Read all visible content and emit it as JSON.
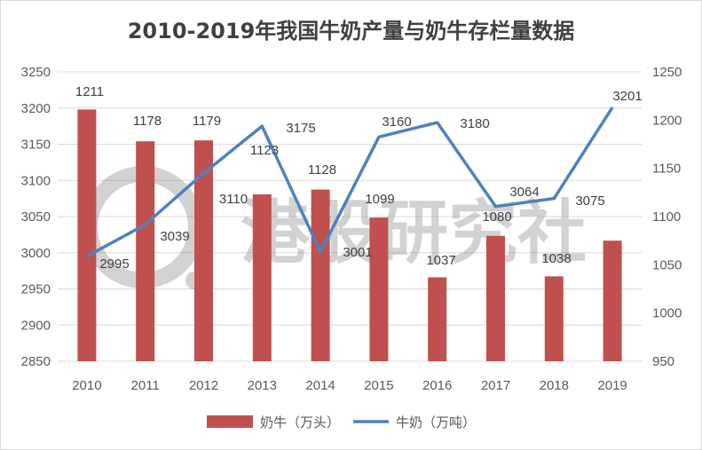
{
  "chart_data": {
    "type": "bar",
    "title": "2010-2019年我国牛奶产量与奶牛存栏量数据",
    "categories": [
      "2010",
      "2011",
      "2012",
      "2013",
      "2014",
      "2015",
      "2016",
      "2017",
      "2018",
      "2019"
    ],
    "series": [
      {
        "name": "奶牛（万头）",
        "type": "bar",
        "axis": "left",
        "values": [
          1211,
          1178,
          1179,
          1123,
          1128,
          1099,
          1037,
          1080,
          1038,
          1075
        ]
      },
      {
        "name": "牛奶（万吨）",
        "type": "line",
        "axis": "right",
        "values": [
          2995,
          3039,
          3110,
          3175,
          3001,
          3160,
          3180,
          3064,
          3075,
          3201
        ]
      }
    ],
    "data_labels": [
      "1211",
      "1178",
      "1179",
      "1123",
      "1128",
      "1099",
      "1037",
      "1080",
      "1038",
      "3201",
      "2995",
      "3039",
      "3110",
      "3175",
      "3001",
      "3160",
      "3180",
      "3064",
      "3075"
    ],
    "y_left": {
      "min": 2850,
      "max": 3250,
      "step": 50,
      "ticks": [
        "2850",
        "2900",
        "2950",
        "3000",
        "3050",
        "3100",
        "3150",
        "3200",
        "3250"
      ]
    },
    "y_right": {
      "min": 950,
      "max": 1250,
      "step": 50,
      "ticks": [
        "950",
        "1000",
        "1050",
        "1100",
        "1150",
        "1200",
        "1250"
      ]
    },
    "grid": true,
    "legend_position": "bottom",
    "colors": {
      "bar": "#c0504d",
      "line": "#4f81bd",
      "grid": "#d9d9d9"
    },
    "watermark": "港股研究社"
  }
}
